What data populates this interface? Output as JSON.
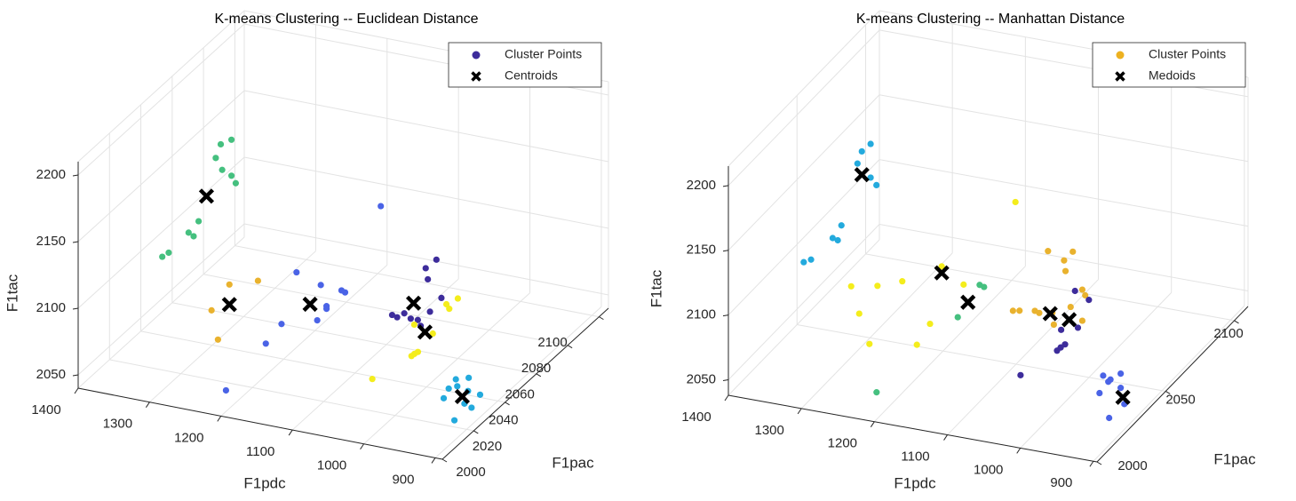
{
  "chart_data": [
    {
      "type": "scatter3d",
      "title": "K-means Clustering -- Euclidean Distance",
      "xlabel": "F1pdc",
      "ylabel": "F1pac",
      "zlabel": "F1tac",
      "xlim": [
        1400,
        890
      ],
      "ylim": [
        2000,
        2106
      ],
      "zlim": [
        2040,
        2210
      ],
      "xticks": [
        900,
        1000,
        1100,
        1200,
        1300,
        1400
      ],
      "yticks": [
        2000,
        2020,
        2040,
        2060,
        2080,
        2100
      ],
      "zticks": [
        2050,
        2100,
        2150,
        2200
      ],
      "grid": true,
      "legend_location": "northeast",
      "series": [
        {
          "name": "Cluster Points",
          "color": "#3d2c9b",
          "marker": "dot",
          "groups": [
            {
              "color": "#45c07f",
              "x": [
                1317,
                1332,
                1339,
                1330,
                1317,
                1311,
                1363,
                1377,
                1370,
                1361,
                1370
              ],
              "y": [
                2060,
                2060,
                2060,
                2060,
                2060,
                2060,
                2060,
                2060,
                2060,
                2040,
                2040
              ],
              "z": [
                2171,
                2166,
                2155,
                2147,
                2144,
                2139,
                2105,
                2095,
                2093,
                2103,
                2099
              ]
            },
            {
              "color": "#e9b22e",
              "x": [
                1276,
                1236,
                1301,
                1292
              ],
              "y": [
                2040,
                2040,
                2040,
                2040
              ],
              "z": [
                2088,
                2095,
                2066,
                2045
              ]
            },
            {
              "color": "#4a63e6",
              "x": [
                1064,
                1182,
                1148,
                1119,
                1114,
                1140,
                1140,
                1203,
                1153,
                1225,
                1193
              ],
              "y": [
                2040,
                2040,
                2040,
                2040,
                2040,
                2040,
                2040,
                2040,
                2040,
                2040,
                2000
              ],
              "z": [
                2169,
                2107,
                2101,
                2100,
                2099,
                2086,
                2084,
                2066,
                2074,
                2049,
                2060
              ]
            },
            {
              "color": "#3d2c9b",
              "x": [
                1045,
                1030,
                1042,
                1023,
                1039,
                1092,
                1085,
                1075,
                1066,
                1056,
                1052
              ],
              "y": [
                2060,
                2060,
                2060,
                2060,
                2060,
                2060,
                2060,
                2060,
                2060,
                2060,
                2060
              ],
              "z": [
                2103,
                2111,
                2095,
                2083,
                2071,
                2063,
                2062,
                2066,
                2063,
                2063,
                2059
              ]
            },
            {
              "color": "#f4ed1c",
              "x": [
                1000,
                1016,
                1012,
                1061,
                1035,
                1012,
                1021,
                1017,
                1032
              ],
              "y": [
                2060,
                2060,
                2060,
                2060,
                2060,
                2040,
                2040,
                2040,
                2020
              ],
              "z": [
                2085,
                2079,
                2076,
                2059,
                2055,
                2065,
                2061,
                2063,
                2064
              ]
            },
            {
              "color": "#23aadd",
              "x": [
                915,
                897,
                925,
                913,
                898,
                903,
                932,
                903,
                893,
                917
              ],
              "y": [
                2020,
                2020,
                2020,
                2020,
                2020,
                2030,
                2020,
                2020,
                2020,
                2020
              ],
              "z": [
                2076,
                2079,
                2068,
                2071,
                2069,
                2055,
                2060,
                2059,
                2057,
                2045
              ]
            }
          ]
        },
        {
          "name": "Centroids",
          "color": "#000000",
          "marker": "x",
          "x": [
            1352,
            1276,
            1163,
            1062,
            1046,
            906
          ],
          "y": [
            2060,
            2040,
            2040,
            2060,
            2060,
            2020
          ],
          "z": [
            2125,
            2073,
            2085,
            2075,
            2055,
            2064
          ]
        }
      ]
    },
    {
      "type": "scatter3d",
      "title": "K-means Clustering -- Manhattan Distance",
      "xlabel": "F1pdc",
      "ylabel": "F1pac",
      "zlabel": "F1tac",
      "xlim": [
        1400,
        895
      ],
      "ylim": [
        2000,
        2110
      ],
      "zlim": [
        2038,
        2215
      ],
      "xticks": [
        900,
        1000,
        1100,
        1200,
        1300,
        1400
      ],
      "yticks": [
        2000,
        2050,
        2100
      ],
      "zticks": [
        2050,
        2100,
        2150,
        2200
      ],
      "grid": true,
      "legend_location": "northeast",
      "series": [
        {
          "name": "Cluster Points",
          "color": "#edb120",
          "marker": "dot",
          "groups": [
            {
              "color": "#23aadd",
              "x": [
                1318,
                1330,
                1336,
                1318,
                1310,
                1358,
                1370,
                1363,
                1362,
                1372
              ],
              "y": [
                2060,
                2060,
                2060,
                2060,
                2060,
                2060,
                2060,
                2060,
                2040,
                2040
              ],
              "z": [
                2175,
                2168,
                2158,
                2149,
                2144,
                2108,
                2097,
                2096,
                2103,
                2100
              ]
            },
            {
              "color": "#f4ed1c",
              "x": [
                1082,
                1183,
                1153,
                1307,
                1271,
                1237,
                1296,
                1199,
                1282,
                1217
              ],
              "y": [
                2040,
                2040,
                2040,
                2040,
                2040,
                2040,
                2040,
                2040,
                2040,
                2040
              ],
              "z": [
                2176,
                2116,
                2105,
                2088,
                2092,
                2099,
                2068,
                2070,
                2046,
                2052
              ]
            },
            {
              "color": "#45c07f",
              "x": [
                1131,
                1125,
                1161,
                1197
              ],
              "y": [
                2040,
                2040,
                2040,
                2000
              ],
              "z": [
                2107,
                2106,
                2079,
                2061
              ]
            },
            {
              "color": "#e9b22e",
              "x": [
                1075,
                1041,
                1053,
                1051,
                1028,
                1024,
                1044,
                1123,
                1114,
                1093,
                1069,
                1087,
                1028,
                1067
              ],
              "y": [
                2060,
                2060,
                2060,
                2060,
                2060,
                2060,
                2060,
                2060,
                2060,
                2060,
                2060,
                2060,
                2060,
                2060
              ],
              "z": [
                2117,
                2120,
                2112,
                2104,
                2092,
                2088,
                2077,
                2066,
                2067,
                2069,
                2070,
                2068,
                2068,
                2061
              ]
            },
            {
              "color": "#3d2c9b",
              "x": [
                1038,
                1019,
                1034,
                1057,
                1025,
                1020,
                1014,
                1075
              ],
              "y": [
                2060,
                2060,
                2060,
                2060,
                2040,
                2040,
                2040,
                2040
              ],
              "z": [
                2090,
                2085,
                2062,
                2058,
                2067,
                2070,
                2073,
                2043
              ]
            },
            {
              "color": "#4a63e6",
              "x": [
                943,
                933,
                919,
                936,
                919,
                948,
                914,
                916
              ],
              "y": [
                2030,
                2030,
                2030,
                2030,
                2030,
                2030,
                2030,
                2020
              ],
              "z": [
                2067,
                2065,
                2071,
                2063,
                2060,
                2053,
                2048,
                2048
              ]
            }
          ]
        },
        {
          "name": "Medoids",
          "color": "#000000",
          "marker": "x",
          "x": [
            1330,
            1183,
            1147,
            1072,
            1046,
            916
          ],
          "y": [
            2060,
            2040,
            2040,
            2060,
            2060,
            2030
          ],
          "z": [
            2150,
            2111,
            2092,
            2069,
            2067,
            2053
          ]
        }
      ]
    }
  ]
}
